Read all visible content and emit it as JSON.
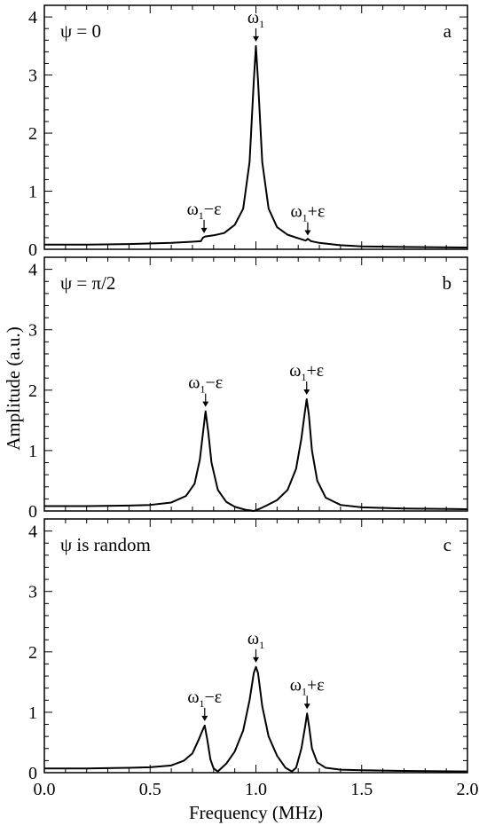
{
  "chart_data": {
    "type": "line",
    "xlabel": "Frequency (MHz)",
    "ylabel": "Amplitude (a.u.)",
    "xlim": [
      0,
      2.0
    ],
    "ylim": [
      0,
      4.2
    ],
    "x_ticks": [
      "0.0",
      "0.5",
      "1.0",
      "1.5",
      "2.0"
    ],
    "y_ticks": [
      "0",
      "1",
      "2",
      "3",
      "4"
    ],
    "grid": false,
    "panels": [
      {
        "letter": "a",
        "annotation": "ψ = 0",
        "peaks": [
          {
            "label": "ω",
            "sub": "1",
            "suffix": "−ε",
            "x": 0.755,
            "y": 0.2
          },
          {
            "label": "ω",
            "sub": "1",
            "suffix": "",
            "x": 1.0,
            "y": 3.5
          },
          {
            "label": "ω",
            "sub": "1",
            "suffix": "+ε",
            "x": 1.245,
            "y": 0.16
          }
        ],
        "series": [
          {
            "x": [
              0.0,
              0.2,
              0.4,
              0.6,
              0.7,
              0.74,
              0.75,
              0.76,
              0.8,
              0.85,
              0.9,
              0.94,
              0.97,
              0.99,
              1.0,
              1.01,
              1.03,
              1.06,
              1.1,
              1.15,
              1.2,
              1.235,
              1.245,
              1.26,
              1.3,
              1.4,
              1.5,
              1.7,
              2.0
            ],
            "y": [
              0.08,
              0.08,
              0.09,
              0.11,
              0.13,
              0.14,
              0.2,
              0.22,
              0.24,
              0.28,
              0.42,
              0.7,
              1.5,
              2.9,
              3.5,
              2.9,
              1.5,
              0.7,
              0.38,
              0.25,
              0.19,
              0.15,
              0.18,
              0.14,
              0.11,
              0.07,
              0.05,
              0.04,
              0.03
            ]
          }
        ]
      },
      {
        "letter": "b",
        "annotation": "ψ = π/2",
        "peaks": [
          {
            "label": "ω",
            "sub": "1",
            "suffix": "−ε",
            "x": 0.762,
            "y": 1.65
          },
          {
            "label": "ω",
            "sub": "1",
            "suffix": "+ε",
            "x": 1.24,
            "y": 1.85
          }
        ],
        "series": [
          {
            "x": [
              0.0,
              0.2,
              0.4,
              0.5,
              0.6,
              0.67,
              0.71,
              0.735,
              0.75,
              0.762,
              0.775,
              0.79,
              0.82,
              0.86,
              0.9,
              0.95,
              0.99,
              1.02,
              1.05,
              1.1,
              1.15,
              1.19,
              1.215,
              1.23,
              1.24,
              1.25,
              1.265,
              1.29,
              1.33,
              1.4,
              1.5,
              1.7,
              2.0
            ],
            "y": [
              0.08,
              0.08,
              0.09,
              0.1,
              0.14,
              0.25,
              0.45,
              0.85,
              1.3,
              1.65,
              1.3,
              0.8,
              0.35,
              0.15,
              0.07,
              0.02,
              0.0,
              0.04,
              0.09,
              0.18,
              0.35,
              0.7,
              1.2,
              1.6,
              1.85,
              1.6,
              1.0,
              0.5,
              0.22,
              0.1,
              0.06,
              0.04,
              0.03
            ]
          }
        ]
      },
      {
        "letter": "c",
        "annotation": "ψ  is random",
        "peaks": [
          {
            "label": "ω",
            "sub": "1",
            "suffix": "−ε",
            "x": 0.758,
            "y": 0.78
          },
          {
            "label": "ω",
            "sub": "1",
            "suffix": "",
            "x": 1.0,
            "y": 1.75
          },
          {
            "label": "ω",
            "sub": "1",
            "suffix": "+ε",
            "x": 1.242,
            "y": 0.98
          }
        ],
        "series": [
          {
            "x": [
              0.0,
              0.2,
              0.4,
              0.5,
              0.6,
              0.66,
              0.7,
              0.73,
              0.75,
              0.758,
              0.77,
              0.785,
              0.8,
              0.82,
              0.86,
              0.9,
              0.94,
              0.97,
              0.99,
              1.0,
              1.01,
              1.03,
              1.06,
              1.1,
              1.14,
              1.17,
              1.19,
              1.215,
              1.232,
              1.242,
              1.252,
              1.265,
              1.29,
              1.33,
              1.4,
              1.5,
              1.7,
              2.0
            ],
            "y": [
              0.07,
              0.07,
              0.08,
              0.09,
              0.12,
              0.2,
              0.32,
              0.55,
              0.72,
              0.78,
              0.55,
              0.22,
              0.07,
              0.02,
              0.15,
              0.35,
              0.7,
              1.2,
              1.65,
              1.75,
              1.65,
              1.1,
              0.6,
              0.28,
              0.08,
              0.02,
              0.08,
              0.4,
              0.75,
              0.98,
              0.75,
              0.4,
              0.17,
              0.08,
              0.05,
              0.04,
              0.03,
              0.02
            ]
          }
        ]
      }
    ]
  }
}
